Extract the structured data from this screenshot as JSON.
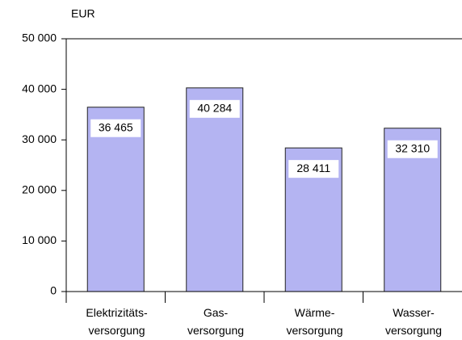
{
  "chart_data": {
    "type": "bar",
    "y_label": "EUR",
    "categories": [
      "Elektrizitäts-\nversorgung",
      "Gas-\nversorgung",
      "Wärme-\nversorgung",
      "Wasser-\nversorgung"
    ],
    "values": [
      36465,
      40284,
      28411,
      32310
    ],
    "value_labels": [
      "36 465",
      "40 284",
      "28 411",
      "32 310"
    ],
    "color": "#b4b4f2",
    "ylim": [
      0,
      50000
    ],
    "yticks": [
      {
        "value": 0,
        "label": "0"
      },
      {
        "value": 10000,
        "label": "10 000"
      },
      {
        "value": 20000,
        "label": "20 000"
      },
      {
        "value": 30000,
        "label": "30 000"
      },
      {
        "value": 40000,
        "label": "40 000"
      },
      {
        "value": 50000,
        "label": "50 000"
      }
    ]
  }
}
